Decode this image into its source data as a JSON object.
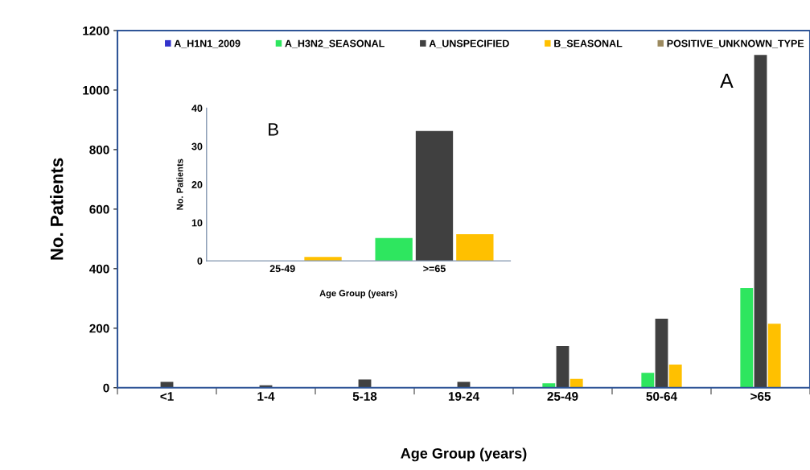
{
  "chart_data": [
    {
      "type": "bar",
      "xlabel": "Age Group (years)",
      "ylabel": "No. Patients",
      "categories": [
        "<1",
        "1-4",
        "5-18",
        "19-24",
        "25-49",
        "50-64",
        ">65"
      ],
      "series": [
        {
          "name": "A_H1N1_2009",
          "color": "#3333cc",
          "values": [
            0,
            0,
            0,
            0,
            0,
            0,
            0
          ]
        },
        {
          "name": "A_H3N2_SEASONAL",
          "color": "#2ee65f",
          "values": [
            0,
            0,
            0,
            0,
            15,
            50,
            335
          ]
        },
        {
          "name": "A_UNSPECIFIED",
          "color": "#404040",
          "values": [
            20,
            8,
            28,
            20,
            140,
            232,
            1118
          ]
        },
        {
          "name": "B_SEASONAL",
          "color": "#ffc000",
          "values": [
            0,
            0,
            0,
            0,
            30,
            78,
            215
          ]
        },
        {
          "name": "POSITIVE_UNKNOWN_TYPE",
          "color": "#9c8a5f",
          "values": [
            0,
            0,
            0,
            0,
            0,
            0,
            0
          ]
        }
      ],
      "ylim": [
        0,
        1200
      ],
      "yticks": [
        0,
        200,
        400,
        600,
        800,
        1000,
        1200
      ],
      "grid": false,
      "legend": "top",
      "annotations": [
        "A"
      ]
    },
    {
      "type": "bar",
      "xlabel": "Age Group (years)",
      "ylabel": "No. Patients",
      "categories": [
        "25-49",
        ">=65"
      ],
      "series": [
        {
          "color": "#2ee65f",
          "values": [
            0,
            6
          ]
        },
        {
          "color": "#404040",
          "values": [
            0,
            34
          ]
        },
        {
          "color": "#ffc000",
          "values": [
            1,
            7
          ]
        }
      ],
      "ylim": [
        0,
        40
      ],
      "yticks": [
        0,
        10,
        20,
        30,
        40
      ],
      "grid": false,
      "legend": false,
      "annotations": [
        "B"
      ]
    }
  ]
}
